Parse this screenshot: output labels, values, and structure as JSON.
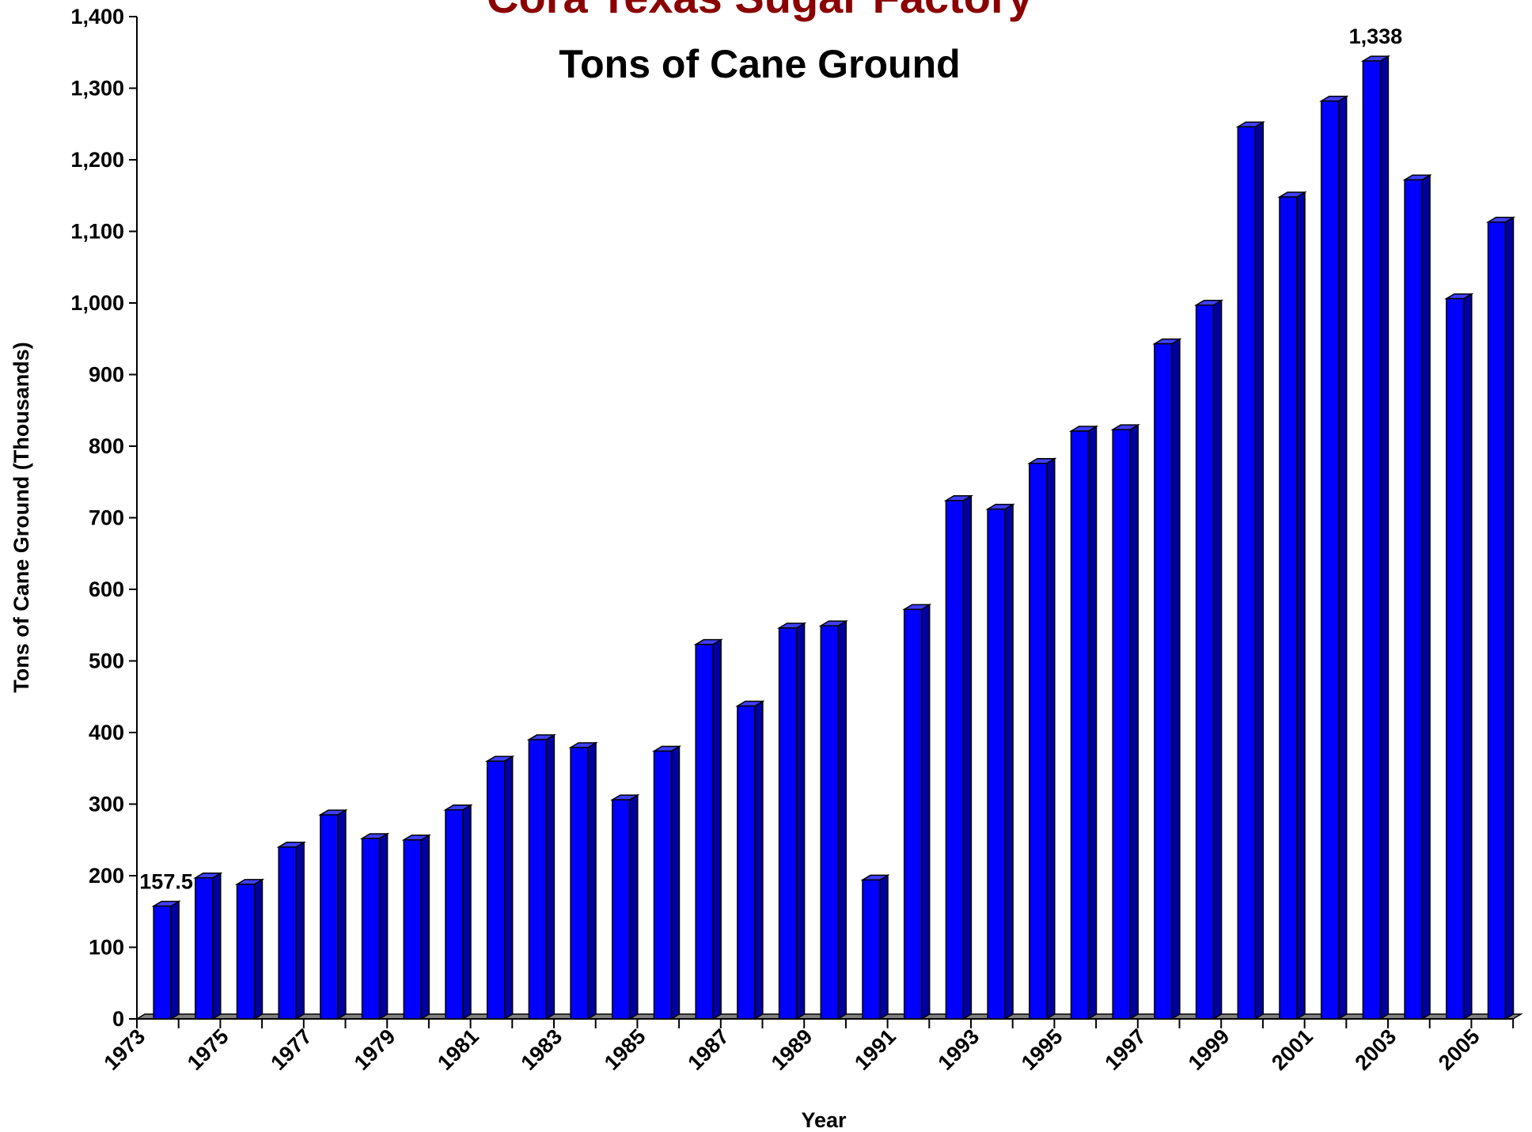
{
  "chart_data": {
    "type": "bar",
    "title": "Cora Texas Sugar Factory",
    "subtitle": "Tons of Cane Ground",
    "y_label": "Tons of Cane Ground (Thousands)",
    "x_label": "Year",
    "categories": [
      "1973",
      null,
      "1975",
      null,
      "1977",
      null,
      "1979",
      null,
      "1981",
      null,
      "1983",
      null,
      "1985",
      null,
      "1987",
      null,
      "1989",
      null,
      "1991",
      null,
      "1993",
      null,
      "1995",
      null,
      "1997",
      null,
      "1999",
      null,
      "2001",
      null,
      "2003",
      null,
      "2005"
    ],
    "values": [
      157.5,
      197,
      188,
      240,
      285,
      252,
      250,
      292,
      360,
      390,
      379,
      306,
      374,
      523,
      437,
      546,
      549,
      194,
      572,
      724,
      712,
      776,
      821,
      823,
      943,
      997,
      1246,
      1148,
      1282,
      1338,
      1172,
      1006,
      1113
    ],
    "value_labels": [
      "157.5",
      null,
      null,
      null,
      null,
      null,
      null,
      null,
      null,
      null,
      null,
      null,
      null,
      null,
      null,
      null,
      null,
      null,
      null,
      null,
      null,
      null,
      null,
      null,
      null,
      null,
      null,
      null,
      null,
      "1,338",
      null,
      null,
      null
    ],
    "color": "#0000ff",
    "ylim": [
      0,
      1400
    ],
    "yticks": [
      0,
      100,
      200,
      300,
      400,
      500,
      600,
      700,
      800,
      900,
      {
        "value": 1000,
        "label": "1,000"
      },
      {
        "value": 1100,
        "label": "1,100"
      },
      {
        "value": 1200,
        "label": "1,200"
      },
      {
        "value": 1300,
        "label": "1,300"
      },
      {
        "value": 1400,
        "label": "1,400"
      }
    ]
  }
}
